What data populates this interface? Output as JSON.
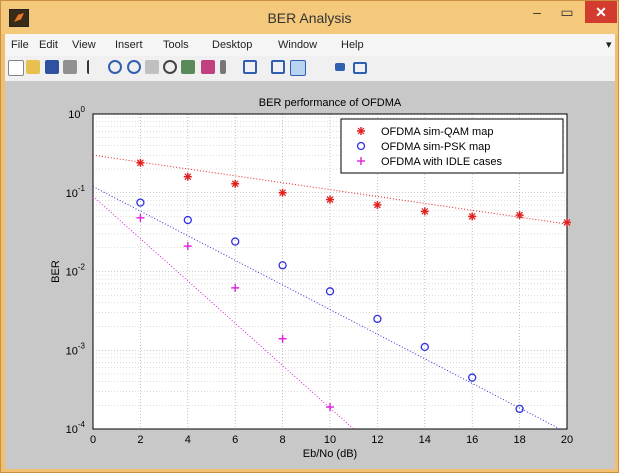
{
  "window": {
    "title": "BER Analysis"
  },
  "menu": [
    "File",
    "Edit",
    "View",
    "Insert",
    "Tools",
    "Desktop",
    "Window",
    "Help"
  ],
  "toolbar_icons": [
    "new-file-icon",
    "open-folder-icon",
    "save-icon",
    "print-icon",
    "pointer-icon",
    "zoom-in-icon",
    "zoom-out-icon",
    "pan-icon",
    "rotate-icon",
    "data-cursor-icon",
    "brush-icon",
    "link-icon",
    "colorbar-icon",
    "legend-icon",
    "hide-plot-tools-icon",
    "show-plot-tools-icon"
  ],
  "colors": {
    "titlebar": "#f4c97c",
    "close": "#d33b2e",
    "figure_bg": "#c8c8c8",
    "qam": "#e02020",
    "psk": "#3030e0",
    "idle": "#e020e0"
  },
  "chart_data": {
    "type": "scatter",
    "title": "BER performance of OFDMA",
    "xlabel": "Eb/No (dB)",
    "ylabel": "BER",
    "xlim": [
      0,
      20
    ],
    "ylim": [
      0.0001,
      1
    ],
    "yscale": "log",
    "grid": true,
    "legend_position": "top-right",
    "x_ticks": [
      0,
      2,
      4,
      6,
      8,
      10,
      12,
      14,
      16,
      18,
      20
    ],
    "y_ticks": [
      {
        "value": 0.0001,
        "label": "10^-4",
        "base": "10",
        "exp": "-4"
      },
      {
        "value": 0.001,
        "label": "10^-3",
        "base": "10",
        "exp": "-3"
      },
      {
        "value": 0.01,
        "label": "10^-2",
        "base": "10",
        "exp": "-2"
      },
      {
        "value": 0.1,
        "label": "10^-1",
        "base": "10",
        "exp": "-1"
      },
      {
        "value": 1,
        "label": "10^0",
        "base": "10",
        "exp": "0"
      }
    ],
    "series": [
      {
        "name": "OFDMA sim-QAM map",
        "marker": "star",
        "color": "#e02020",
        "x": [
          2,
          4,
          6,
          8,
          10,
          12,
          14,
          16,
          18,
          20
        ],
        "y": [
          0.24,
          0.16,
          0.13,
          0.1,
          0.082,
          0.07,
          0.058,
          0.05,
          0.052,
          0.042
        ],
        "fit_x": [
          0,
          20
        ],
        "fit_y": [
          0.3,
          0.04
        ]
      },
      {
        "name": "OFDMA sim-PSK map",
        "marker": "circle",
        "color": "#3030e0",
        "x": [
          2,
          4,
          6,
          8,
          10,
          12,
          14,
          16,
          18
        ],
        "y": [
          0.075,
          0.045,
          0.024,
          0.012,
          0.0056,
          0.0025,
          0.0011,
          0.00045,
          0.00018
        ],
        "fit_x": [
          0,
          20
        ],
        "fit_y": [
          0.12,
          9e-05
        ]
      },
      {
        "name": "OFDMA with IDLE cases",
        "marker": "plus",
        "color": "#e020e0",
        "x": [
          2,
          4,
          6,
          8,
          10
        ],
        "y": [
          0.048,
          0.021,
          0.0062,
          0.0014,
          0.00019
        ],
        "fit_x": [
          0,
          11
        ],
        "fit_y": [
          0.09,
          0.0001
        ]
      }
    ]
  }
}
